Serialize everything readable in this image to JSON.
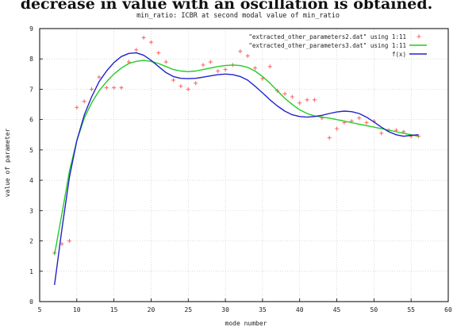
{
  "caption": "decrease in value with an oscillation is obtained.",
  "chart_data": {
    "type": "line",
    "title": "min_ratio: ICBR at second modal value of min_ratio",
    "xlabel": "mode number",
    "ylabel": "value of parameter",
    "xlim": [
      5,
      60
    ],
    "ylim": [
      0,
      9
    ],
    "xticks": [
      5,
      10,
      15,
      20,
      25,
      30,
      35,
      40,
      45,
      50,
      55,
      60
    ],
    "yticks": [
      0,
      1,
      2,
      3,
      4,
      5,
      6,
      7,
      8,
      9
    ],
    "grid": true,
    "legend_position": "top-right",
    "series": [
      {
        "name": "\"extracted_other_parameters2.dat\" using 1:11",
        "style": "points",
        "color": "#ff6b6b",
        "x": [
          7,
          8,
          9,
          10,
          11,
          12,
          13,
          14,
          15,
          16,
          17,
          18,
          19,
          20,
          21,
          22,
          23,
          24,
          25,
          26,
          27,
          28,
          29,
          30,
          31,
          32,
          33,
          34,
          35,
          36,
          37,
          38,
          39,
          40,
          41,
          42,
          43,
          44,
          45,
          46,
          47,
          48,
          49,
          50,
          51,
          52,
          53,
          54,
          55,
          56
        ],
        "y": [
          1.6,
          1.9,
          2.0,
          6.4,
          6.6,
          7.0,
          7.4,
          7.05,
          7.05,
          7.05,
          7.9,
          8.3,
          8.7,
          8.55,
          8.2,
          7.9,
          7.3,
          7.1,
          7.0,
          7.2,
          7.8,
          7.9,
          7.6,
          7.65,
          7.8,
          8.25,
          8.1,
          7.7,
          7.35,
          7.75,
          6.95,
          6.85,
          6.75,
          6.55,
          6.65,
          6.65,
          6.05,
          5.4,
          5.7,
          5.9,
          5.95,
          6.05,
          5.9,
          5.95,
          5.55,
          5.65,
          5.65,
          5.6,
          5.45,
          5.45
        ]
      },
      {
        "name": "\"extracted_other_parameters3.dat\" using 1:11",
        "style": "line",
        "color": "#22cc22",
        "x": [
          7,
          8,
          9,
          10,
          11,
          12,
          13,
          14,
          15,
          16,
          17,
          18,
          19,
          20,
          21,
          22,
          23,
          24,
          25,
          26,
          27,
          28,
          29,
          30,
          31,
          32,
          33,
          34,
          35,
          36,
          37,
          38,
          39,
          40,
          41,
          42,
          43,
          44,
          45,
          46,
          47,
          48,
          49,
          50,
          51,
          52,
          53,
          54,
          55,
          56
        ],
        "y": [
          1.55,
          2.9,
          4.3,
          5.3,
          6.05,
          6.55,
          6.95,
          7.25,
          7.5,
          7.7,
          7.85,
          7.92,
          7.95,
          7.92,
          7.85,
          7.75,
          7.65,
          7.6,
          7.58,
          7.6,
          7.65,
          7.7,
          7.75,
          7.78,
          7.8,
          7.78,
          7.72,
          7.6,
          7.42,
          7.2,
          6.95,
          6.7,
          6.5,
          6.32,
          6.2,
          6.12,
          6.08,
          6.05,
          6.0,
          5.95,
          5.9,
          5.85,
          5.8,
          5.75,
          5.7,
          5.65,
          5.6,
          5.55,
          5.5,
          5.45
        ]
      },
      {
        "name": "f(x)",
        "style": "line",
        "color": "#2222cc",
        "x": [
          7,
          8,
          9,
          10,
          11,
          12,
          13,
          14,
          15,
          16,
          17,
          18,
          19,
          20,
          21,
          22,
          23,
          24,
          25,
          26,
          27,
          28,
          29,
          30,
          31,
          32,
          33,
          34,
          35,
          36,
          37,
          38,
          39,
          40,
          41,
          42,
          43,
          44,
          45,
          46,
          47,
          48,
          49,
          50,
          51,
          52,
          53,
          54,
          55,
          56
        ],
        "y": [
          0.55,
          2.4,
          4.1,
          5.3,
          6.15,
          6.75,
          7.25,
          7.6,
          7.88,
          8.08,
          8.18,
          8.2,
          8.12,
          7.95,
          7.75,
          7.55,
          7.42,
          7.36,
          7.35,
          7.36,
          7.4,
          7.44,
          7.48,
          7.5,
          7.48,
          7.42,
          7.3,
          7.1,
          6.88,
          6.65,
          6.45,
          6.28,
          6.16,
          6.1,
          6.08,
          6.1,
          6.14,
          6.2,
          6.25,
          6.28,
          6.26,
          6.2,
          6.08,
          5.92,
          5.75,
          5.6,
          5.5,
          5.45,
          5.48,
          5.5
        ]
      }
    ]
  }
}
